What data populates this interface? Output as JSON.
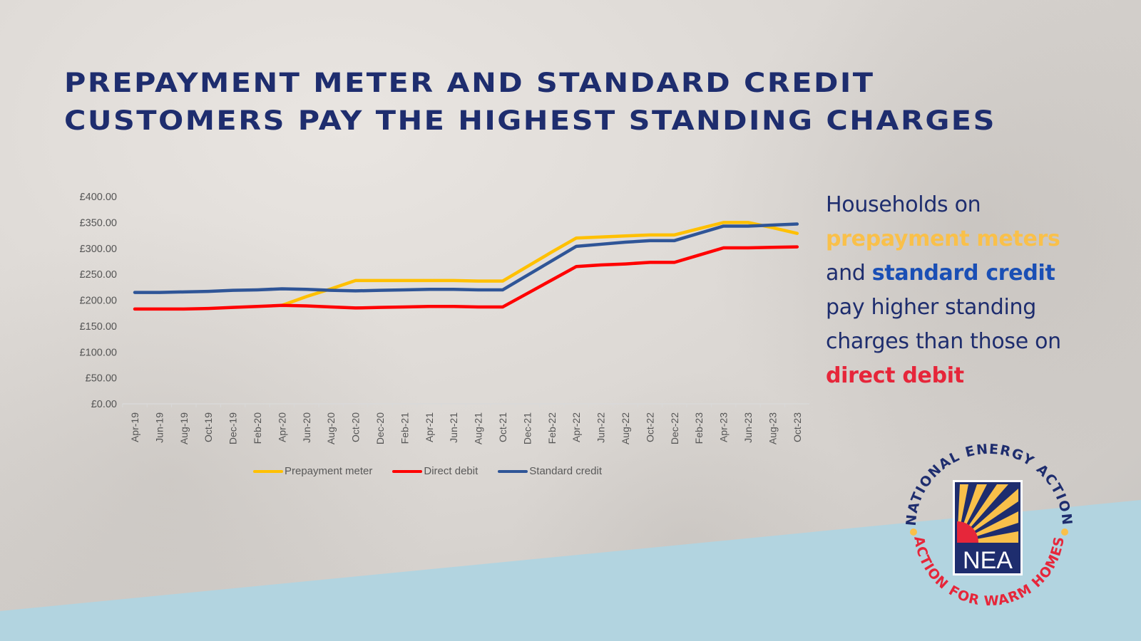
{
  "title": {
    "line1": "Prepayment meter and standard credit",
    "line2": "customers pay the highest standing charges"
  },
  "colors": {
    "title": "#1e2d6e",
    "prepayment": "#ffc000",
    "direct_debit": "#ff0000",
    "standard_credit": "#2f5597",
    "highlight_prepayment": "#f9c04a",
    "highlight_standard": "#1a4fb5",
    "highlight_direct": "#e6263a",
    "band": "#b2d4e0"
  },
  "side_text": {
    "line1": "Households on",
    "prepayment": "prepayment meters",
    "and": "and ",
    "standard": "standard credit",
    "line4": "pay higher standing",
    "line5": "charges than those on",
    "direct": "direct debit"
  },
  "logo": {
    "top_arc": "NATIONAL ENERGY ACTION",
    "bottom_arc": "ACTION FOR WARM HOMES",
    "badge": "NEA"
  },
  "chart_data": {
    "type": "line",
    "title": "",
    "xlabel": "",
    "ylabel": "",
    "ylim": [
      0,
      400
    ],
    "yticks": [
      "£0.00",
      "£50.00",
      "£100.00",
      "£150.00",
      "£200.00",
      "£250.00",
      "£300.00",
      "£350.00",
      "£400.00"
    ],
    "grid": false,
    "legend_position": "bottom",
    "categories": [
      "Apr-19",
      "Jun-19",
      "Aug-19",
      "Oct-19",
      "Dec-19",
      "Feb-20",
      "Apr-20",
      "Jun-20",
      "Aug-20",
      "Oct-20",
      "Dec-20",
      "Feb-21",
      "Apr-21",
      "Jun-21",
      "Aug-21",
      "Oct-21",
      "Dec-21",
      "Feb-22",
      "Apr-22",
      "Jun-22",
      "Aug-22",
      "Oct-22",
      "Dec-22",
      "Feb-23",
      "Apr-23",
      "Jun-23",
      "Aug-23",
      "Oct-23"
    ],
    "series": [
      {
        "name": "Prepayment meter",
        "color": "#ffc000",
        "values": [
          null,
          null,
          null,
          null,
          null,
          null,
          190,
          207,
          222,
          238,
          238,
          238,
          238,
          238,
          237,
          237,
          265,
          293,
          320,
          322,
          324,
          326,
          326,
          338,
          350,
          350,
          340,
          329
        ]
      },
      {
        "name": "Direct debit",
        "color": "#ff0000",
        "values": [
          183,
          183,
          183,
          184,
          186,
          188,
          190,
          189,
          187,
          185,
          186,
          187,
          188,
          188,
          187,
          187,
          213,
          239,
          265,
          268,
          270,
          273,
          273,
          287,
          301,
          301,
          302,
          303
        ]
      },
      {
        "name": "Standard credit",
        "color": "#2f5597",
        "values": [
          215,
          215,
          216,
          217,
          219,
          220,
          222,
          221,
          219,
          218,
          219,
          220,
          221,
          221,
          220,
          220,
          248,
          276,
          304,
          308,
          312,
          315,
          315,
          329,
          343,
          343,
          345,
          347
        ]
      }
    ]
  }
}
